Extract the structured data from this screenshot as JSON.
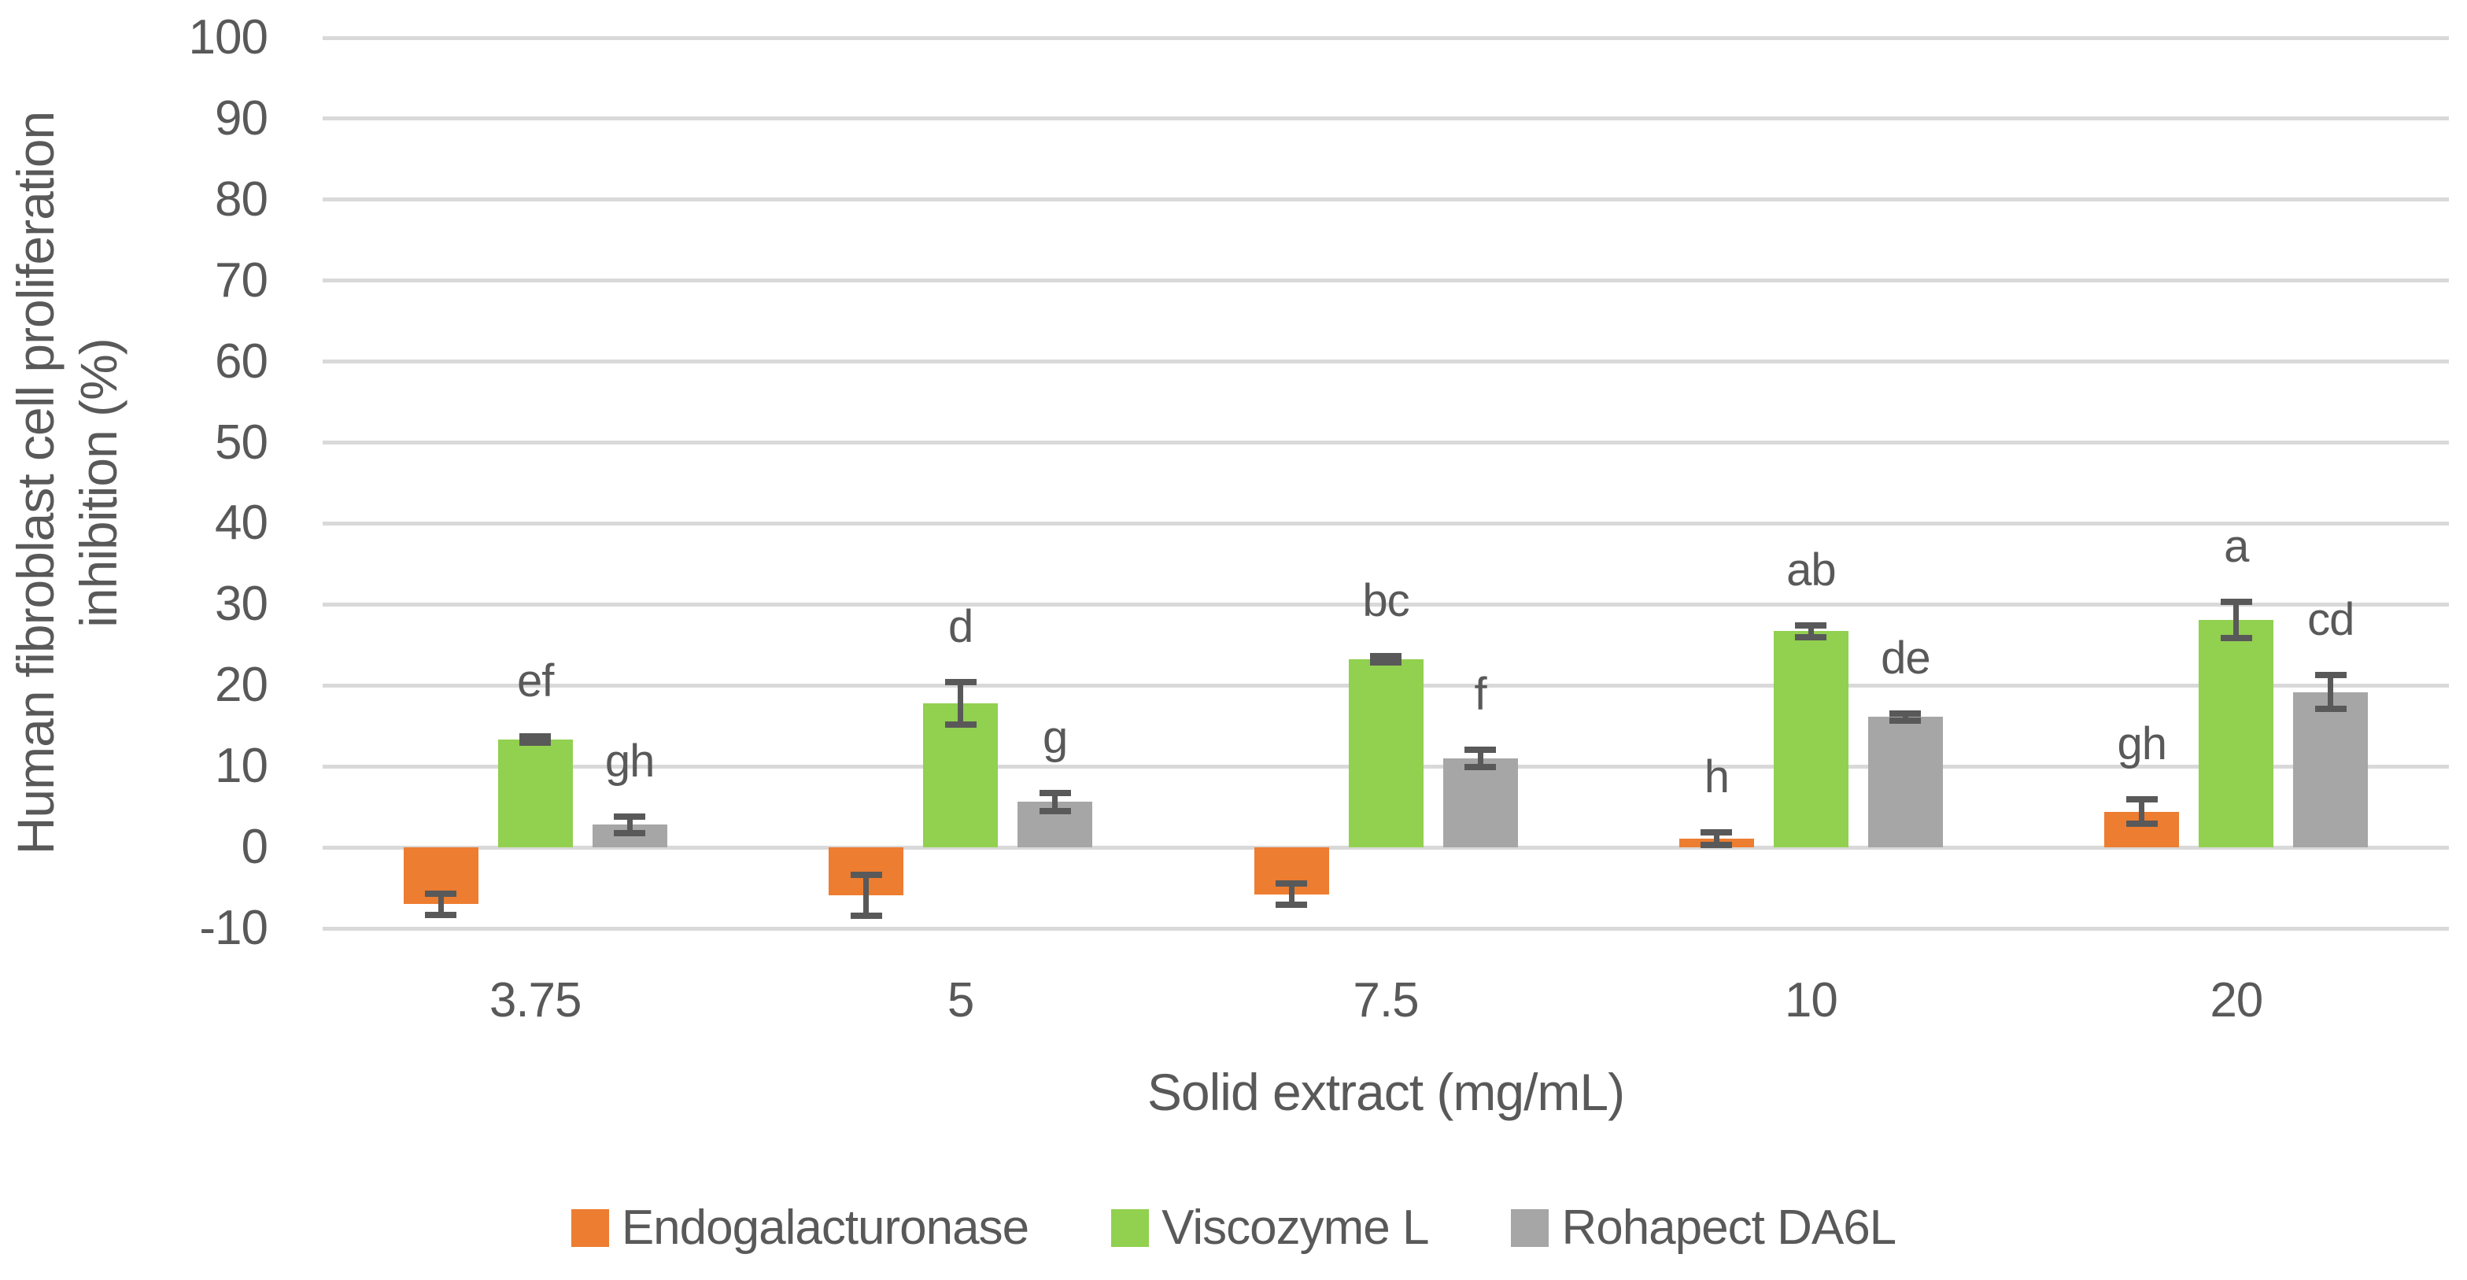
{
  "chart_data": {
    "type": "bar",
    "title": "",
    "xlabel": "Solid extract (mg/mL)",
    "ylabel": "Human fibroblast cell proliferation inhibition (%)",
    "ylabel_lines": [
      "Human fibroblast cell proliferation",
      "inhibition (%)"
    ],
    "categories": [
      "3.75",
      "5",
      "7.5",
      "10",
      "20"
    ],
    "ylim": [
      -10,
      100
    ],
    "ytick_step": 10,
    "yticks": [
      "100",
      "90",
      "80",
      "70",
      "60",
      "50",
      "40",
      "30",
      "20",
      "10",
      "0",
      "-10"
    ],
    "ytick_values": [
      100,
      90,
      80,
      70,
      60,
      50,
      40,
      30,
      20,
      10,
      0,
      -10
    ],
    "grid": true,
    "legend_position": "bottom",
    "series": [
      {
        "name": "Endogalacturonase",
        "color": "#ED7D31",
        "values": [
          -7.0,
          -5.9,
          -5.8,
          1.1,
          4.4
        ],
        "errors": [
          1.3,
          2.5,
          1.3,
          0.8,
          1.5
        ],
        "letters": [
          "",
          "",
          "",
          "h",
          "gh"
        ]
      },
      {
        "name": "Viscozyme L",
        "color": "#92D050",
        "values": [
          13.3,
          17.8,
          23.2,
          26.7,
          28.1
        ],
        "errors": [
          0.4,
          2.6,
          0.4,
          0.7,
          2.2
        ],
        "letters": [
          "ef",
          "d",
          "bc",
          "ab",
          "a"
        ]
      },
      {
        "name": "Rohapect DA6L",
        "color": "#A6A6A6",
        "values": [
          2.8,
          5.6,
          11.0,
          16.1,
          19.2
        ],
        "errors": [
          1.0,
          1.1,
          1.1,
          0.4,
          2.1
        ],
        "letters": [
          "gh",
          "g",
          "f",
          "de",
          "cd"
        ]
      }
    ],
    "colors": {
      "gridline": "#D9D9D9",
      "error_bar": "#595959",
      "text": "#595959",
      "background": "#FFFFFF"
    }
  }
}
